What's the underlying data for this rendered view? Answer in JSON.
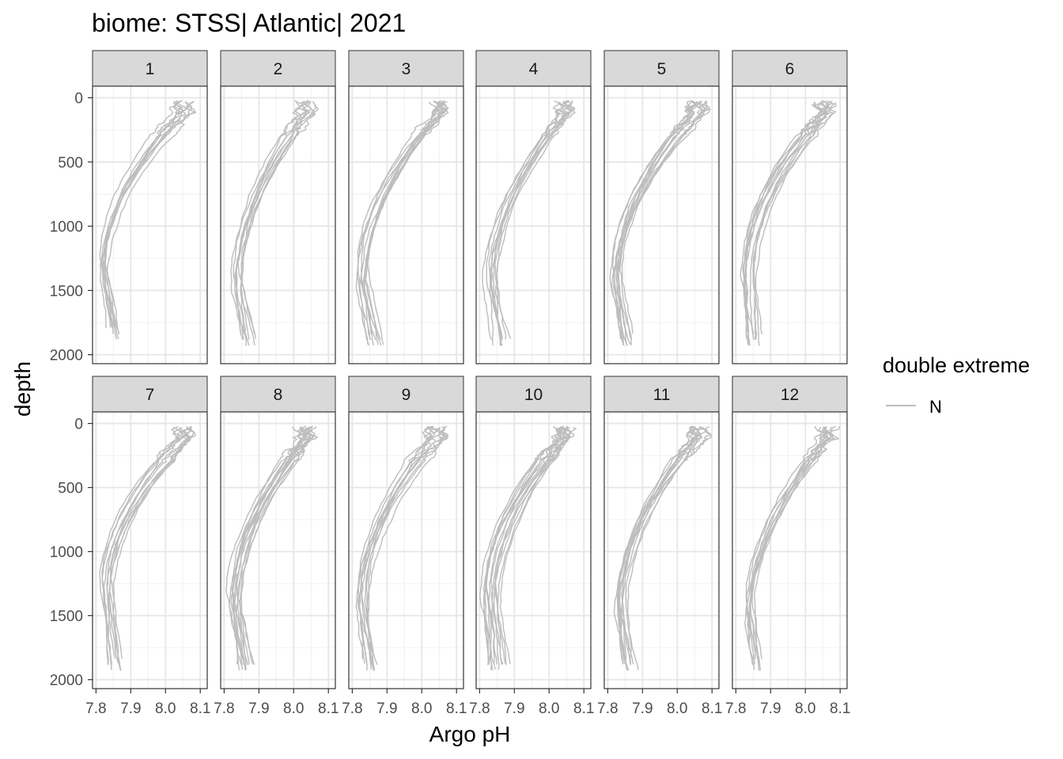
{
  "chart_data": {
    "type": "line",
    "title": "biome: STSS| Atlantic| 2021",
    "xlabel": "Argo pH",
    "ylabel": "depth",
    "xlim": [
      7.79,
      8.12
    ],
    "ylim": [
      2070,
      -90
    ],
    "y_reversed": true,
    "x_ticks": [
      "7.8",
      "7.9",
      "8.0",
      "8.1"
    ],
    "x_tick_values": [
      7.8,
      7.9,
      8.0,
      8.1
    ],
    "y_ticks": [
      "0",
      "500",
      "1000",
      "1500",
      "2000"
    ],
    "y_tick_values": [
      0,
      500,
      1000,
      1500,
      2000
    ],
    "grid": true,
    "line_color": "#bdbdbd",
    "legend": {
      "title": "double extreme",
      "entries": [
        "N"
      ],
      "placement": "right"
    },
    "facets": [
      {
        "label": "1",
        "n": 10,
        "surf": 8.05,
        "min": 7.825,
        "mindepth": 1330,
        "bottom": 7.855,
        "maxdepth": 1900,
        "spread": 0.016,
        "seed": 11
      },
      {
        "label": "2",
        "n": 10,
        "surf": 8.04,
        "min": 7.84,
        "mindepth": 1450,
        "bottom": 7.87,
        "maxdepth": 1960,
        "spread": 0.018,
        "seed": 23
      },
      {
        "label": "3",
        "n": 11,
        "surf": 8.05,
        "min": 7.83,
        "mindepth": 1400,
        "bottom": 7.87,
        "maxdepth": 1960,
        "spread": 0.018,
        "seed": 37
      },
      {
        "label": "4",
        "n": 10,
        "surf": 8.04,
        "min": 7.83,
        "mindepth": 1450,
        "bottom": 7.86,
        "maxdepth": 1960,
        "spread": 0.02,
        "seed": 41
      },
      {
        "label": "5",
        "n": 13,
        "surf": 8.06,
        "min": 7.825,
        "mindepth": 1400,
        "bottom": 7.86,
        "maxdepth": 1960,
        "spread": 0.02,
        "seed": 53
      },
      {
        "label": "6",
        "n": 12,
        "surf": 8.06,
        "min": 7.835,
        "mindepth": 1400,
        "bottom": 7.85,
        "maxdepth": 1960,
        "spread": 0.018,
        "seed": 67
      },
      {
        "label": "7",
        "n": 11,
        "surf": 8.05,
        "min": 7.83,
        "mindepth": 1300,
        "bottom": 7.85,
        "maxdepth": 1960,
        "spread": 0.012,
        "seed": 71
      },
      {
        "label": "8",
        "n": 14,
        "surf": 8.04,
        "min": 7.83,
        "mindepth": 1400,
        "bottom": 7.86,
        "maxdepth": 1960,
        "spread": 0.02,
        "seed": 83
      },
      {
        "label": "9",
        "n": 11,
        "surf": 8.04,
        "min": 7.83,
        "mindepth": 1400,
        "bottom": 7.86,
        "maxdepth": 1960,
        "spread": 0.018,
        "seed": 97
      },
      {
        "label": "10",
        "n": 14,
        "surf": 8.04,
        "min": 7.83,
        "mindepth": 1350,
        "bottom": 7.85,
        "maxdepth": 1960,
        "spread": 0.024,
        "seed": 101
      },
      {
        "label": "11",
        "n": 12,
        "surf": 8.06,
        "min": 7.835,
        "mindepth": 1450,
        "bottom": 7.86,
        "maxdepth": 1960,
        "spread": 0.02,
        "seed": 113
      },
      {
        "label": "12",
        "n": 10,
        "surf": 8.06,
        "min": 7.83,
        "mindepth": 1500,
        "bottom": 7.86,
        "maxdepth": 1960,
        "spread": 0.018,
        "seed": 127
      }
    ]
  }
}
